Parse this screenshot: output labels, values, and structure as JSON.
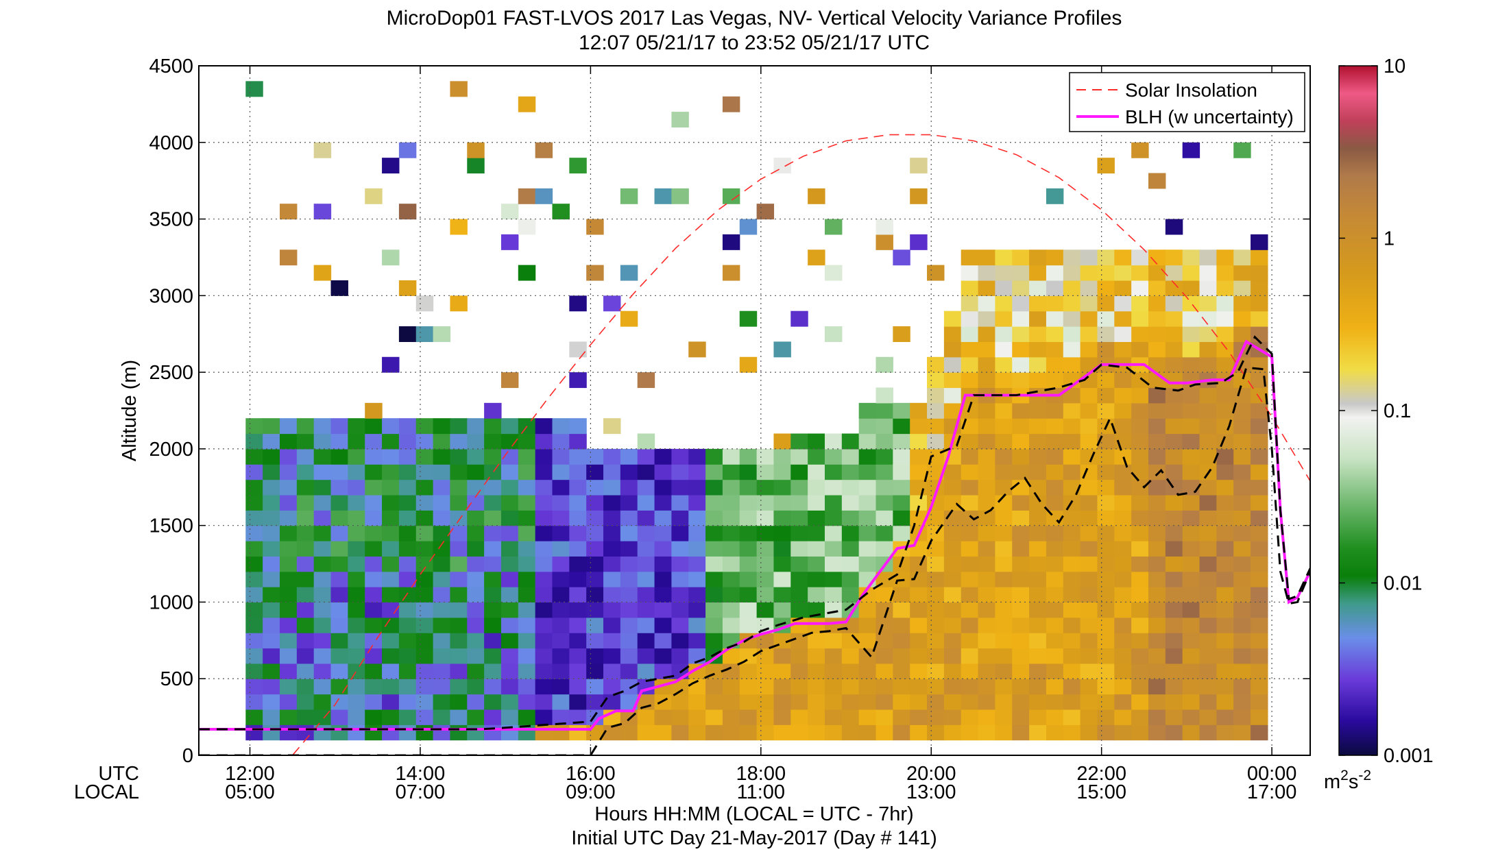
{
  "chart_data": {
    "type": "heatmap",
    "title": "MicroDop01 FAST-LVOS 2017 Las Vegas, NV- Vertical Velocity Variance Profiles",
    "subtitle": "12:07 05/21/17 to 23:52 05/21/17  UTC",
    "ylabel": "Altitude (m)",
    "xlabel": "Hours HH:MM  (LOCAL = UTC - 7hr)",
    "xlabel2": "Initial UTC Day 21-May-2017 (Day # 141)",
    "row_label_utc": "UTC",
    "row_label_local": "LOCAL",
    "xlim": [
      11.4,
      24.45
    ],
    "ylim": [
      0,
      4500
    ],
    "x_ticks_utc": [
      {
        "h": 12,
        "label": "12:00"
      },
      {
        "h": 14,
        "label": "14:00"
      },
      {
        "h": 16,
        "label": "16:00"
      },
      {
        "h": 18,
        "label": "18:00"
      },
      {
        "h": 20,
        "label": "20:00"
      },
      {
        "h": 22,
        "label": "22:00"
      },
      {
        "h": 24,
        "label": "00:00"
      }
    ],
    "x_ticks_local": [
      "05:00",
      "07:00",
      "09:00",
      "11:00",
      "13:00",
      "15:00",
      "17:00"
    ],
    "y_ticks": [
      0,
      500,
      1000,
      1500,
      2000,
      2500,
      3000,
      3500,
      4000,
      4500
    ],
    "grid": true,
    "colorbar": {
      "scale": "log",
      "range": [
        0.001,
        10
      ],
      "ticks": [
        {
          "v": 0.001,
          "label": "0.001"
        },
        {
          "v": 0.01,
          "label": "0.01"
        },
        {
          "v": 0.1,
          "label": "0.1"
        },
        {
          "v": 1,
          "label": "1"
        },
        {
          "v": 10,
          "label": "10"
        }
      ],
      "units_base": "m",
      "units_exp1": "2",
      "units_mid": "s",
      "units_exp2": "-2",
      "colors": [
        "#0b0a3e",
        "#2a0a9e",
        "#6a3bd9",
        "#6a8ee8",
        "#3f9a8a",
        "#0a7f0a",
        "#1f8f1f",
        "#69b569",
        "#c8e3c3",
        "#f2f2f0",
        "#c8c8c8",
        "#f1dc45",
        "#efb115",
        "#d59a1c",
        "#c68a35",
        "#b07a4a",
        "#8a5a44",
        "#c0405a",
        "#ee5a86",
        "#b0102e"
      ],
      "color_stops": [
        0,
        0.05,
        0.11,
        0.17,
        0.22,
        0.26,
        0.3,
        0.36,
        0.43,
        0.49,
        0.51,
        0.56,
        0.62,
        0.7,
        0.78,
        0.84,
        0.88,
        0.92,
        0.96,
        1
      ]
    },
    "legend": {
      "placement": "top-right",
      "entries": [
        "Solar Insolation",
        "BLH (w uncertainty)"
      ]
    },
    "series": [
      {
        "name": "Solar Insolation",
        "color": "#ff2a2a",
        "style": "dashed",
        "x": [
          11.4,
          12,
          12.5,
          13,
          13.5,
          14,
          14.5,
          15,
          15.5,
          16,
          16.5,
          17,
          17.5,
          18,
          18.5,
          19,
          19.5,
          20,
          20.5,
          21,
          21.5,
          22,
          22.5,
          23,
          23.5,
          24,
          24.45
        ],
        "y": [
          0,
          0,
          0,
          330,
          770,
          1180,
          1570,
          1960,
          2330,
          2680,
          3010,
          3310,
          3560,
          3760,
          3910,
          4010,
          4050,
          4050,
          4010,
          3920,
          3770,
          3560,
          3300,
          2990,
          2630,
          2210,
          1790
        ]
      },
      {
        "name": "BLH (w uncertainty)",
        "color": "#ff19ff",
        "style": "solid",
        "x": [
          11.4,
          12,
          12.5,
          13,
          13.5,
          14,
          14.5,
          15,
          15.5,
          16,
          16.1,
          16.3,
          16.5,
          16.6,
          16.8,
          17,
          17.2,
          17.4,
          17.6,
          17.8,
          18,
          18.2,
          18.4,
          18.6,
          18.8,
          19,
          19.2,
          19.4,
          19.6,
          19.8,
          20,
          20.2,
          20.4,
          20.6,
          20.8,
          21,
          21.5,
          22,
          22.3,
          22.5,
          22.8,
          23,
          23.3,
          23.5,
          23.7,
          23.85,
          24,
          24.1,
          24.2,
          24.3,
          24.45
        ],
        "y": [
          170,
          170,
          170,
          170,
          170,
          170,
          170,
          170,
          170,
          170,
          240,
          290,
          290,
          420,
          450,
          480,
          550,
          610,
          690,
          750,
          790,
          820,
          860,
          860,
          860,
          870,
          1050,
          1200,
          1350,
          1370,
          1620,
          1950,
          2350,
          2350,
          2350,
          2350,
          2350,
          2550,
          2550,
          2550,
          2430,
          2430,
          2450,
          2450,
          2700,
          2650,
          2600,
          1600,
          1000,
          1030,
          1200
        ]
      },
      {
        "name": "BLH upper",
        "color": "#000000",
        "style": "dashed",
        "x": [
          11.4,
          12,
          13,
          14,
          14.7,
          15,
          15.5,
          16,
          16.2,
          16.4,
          16.6,
          16.8,
          17,
          17.2,
          17.4,
          17.6,
          17.8,
          18,
          18.2,
          18.5,
          18.8,
          19,
          19.3,
          19.6,
          19.8,
          20,
          20.3,
          20.5,
          20.8,
          21,
          21.5,
          21.8,
          22,
          22.3,
          22.6,
          22.9,
          23.1,
          23.4,
          23.6,
          23.8,
          24,
          24.1,
          24.2,
          24.3,
          24.45
        ],
        "y": [
          170,
          170,
          170,
          170,
          170,
          180,
          200,
          220,
          380,
          420,
          480,
          500,
          520,
          600,
          640,
          700,
          740,
          810,
          850,
          900,
          930,
          950,
          1080,
          1180,
          1500,
          1950,
          2020,
          2350,
          2350,
          2350,
          2400,
          2450,
          2550,
          2530,
          2400,
          2380,
          2420,
          2430,
          2500,
          2730,
          2620,
          1600,
          1020,
          1040,
          1220
        ]
      },
      {
        "name": "BLH lower",
        "color": "#000000",
        "style": "dashed",
        "x": [
          11.4,
          12,
          13,
          14,
          14.5,
          14.8,
          15,
          15.3,
          15.6,
          16,
          16.2,
          16.4,
          16.6,
          16.8,
          17,
          17.2,
          17.4,
          17.6,
          17.8,
          18,
          18.2,
          18.4,
          18.6,
          18.8,
          19,
          19.3,
          19.6,
          19.8,
          20,
          20.3,
          20.5,
          20.7,
          20.9,
          21.1,
          21.3,
          21.5,
          21.7,
          21.9,
          22.1,
          22.3,
          22.5,
          22.7,
          22.9,
          23.1,
          23.3,
          23.5,
          23.7,
          23.9,
          24,
          24.1,
          24.2,
          24.3,
          24.45
        ],
        "y": [
          0,
          0,
          0,
          0,
          0,
          0,
          0,
          0,
          0,
          0,
          180,
          210,
          310,
          340,
          400,
          470,
          520,
          560,
          610,
          680,
          720,
          760,
          800,
          810,
          830,
          640,
          1140,
          1150,
          1400,
          1640,
          1540,
          1600,
          1720,
          1810,
          1640,
          1520,
          1700,
          1960,
          2200,
          1880,
          1750,
          1860,
          1700,
          1720,
          1880,
          2150,
          2530,
          2520,
          2000,
          1200,
          990,
          1000,
          1200
        ]
      }
    ]
  }
}
